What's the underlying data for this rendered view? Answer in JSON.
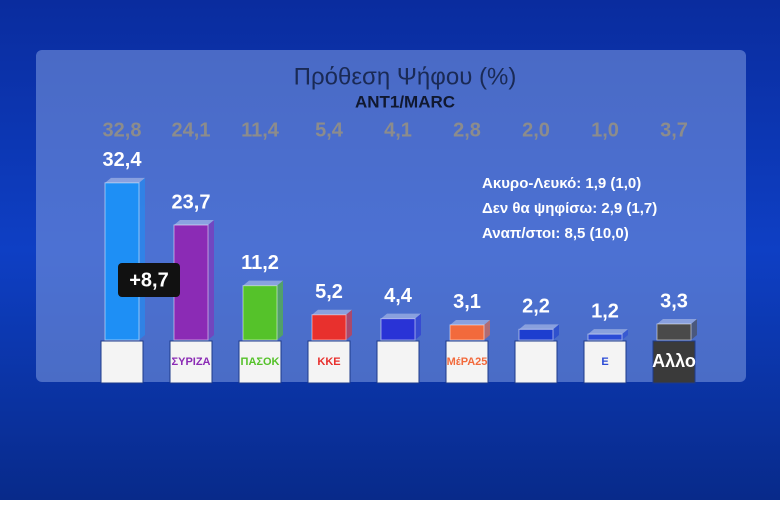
{
  "chart_data": {
    "type": "bar",
    "title": "Πρόθεση Ψήφου (%)",
    "subtitle": "ANT1/MARC",
    "categories": [
      null,
      "ΣΥΡΙΖΑ",
      "ΠΑΣΟΚ",
      "ΚΚΕ",
      null,
      "ΜέΡΑ25",
      null,
      "Ε",
      "Αλλο"
    ],
    "values": [
      32.4,
      23.7,
      11.2,
      5.2,
      4.4,
      3.1,
      2.2,
      1.2,
      3.3
    ],
    "value_labels": [
      "32,4",
      "23,7",
      "11,2",
      "5,2",
      "4,4",
      "3,1",
      "2,2",
      "1,2",
      "3,3"
    ],
    "colors": [
      "#1e8ff5",
      "#8b2bb5",
      "#55c22a",
      "#e8302d",
      "#2933d6",
      "#f26a3c",
      "#1d3ecf",
      "#2b4bd6",
      "#4a4a4a"
    ],
    "previous_values": [
      32.8,
      24.1,
      11.4,
      5.4,
      4.1,
      2.8,
      2.0,
      1.0,
      3.7
    ],
    "previous_value_labels": [
      "32,8",
      "24,1",
      "11,4",
      "5,4",
      "4,1",
      "2,8",
      "2,0",
      "1,0",
      "3,7"
    ],
    "annotation": "+8,7",
    "notes": [
      "Ακυρο-Λευκό: 1,9 (1,0)",
      "Δεν θα ψηφίσω: 2,9 (1,7)",
      "Αναπ/στοι: 8,5 (10,0)"
    ]
  }
}
